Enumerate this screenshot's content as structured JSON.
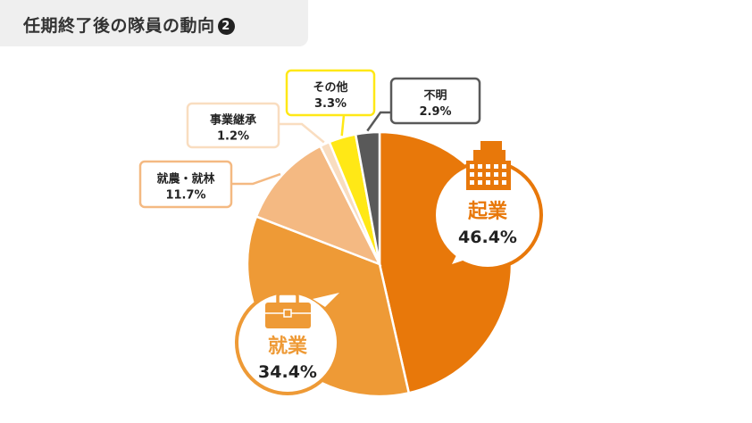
{
  "header": {
    "title": "任期終了後の隊員の動向",
    "title_number": "2"
  },
  "chart_data": {
    "type": "pie",
    "title": "任期終了後の隊員の動向",
    "slices": [
      {
        "label": "起業",
        "value": 46.4,
        "display": "46.4%",
        "color": "#E8780A"
      },
      {
        "label": "就業",
        "value": 34.4,
        "display": "34.4%",
        "color": "#EE9A36"
      },
      {
        "label": "就農・就林",
        "value": 11.7,
        "display": "11.7%",
        "color": "#F4B982"
      },
      {
        "label": "事業継承",
        "value": 1.2,
        "display": "1.2%",
        "color": "#F9DDC0"
      },
      {
        "label": "その他",
        "value": 3.3,
        "display": "3.3%",
        "color": "#FFE816"
      },
      {
        "label": "不明",
        "value": 2.9,
        "display": "2.9%",
        "color": "#595959"
      }
    ],
    "icons": [
      "building-icon",
      "briefcase-icon"
    ]
  }
}
